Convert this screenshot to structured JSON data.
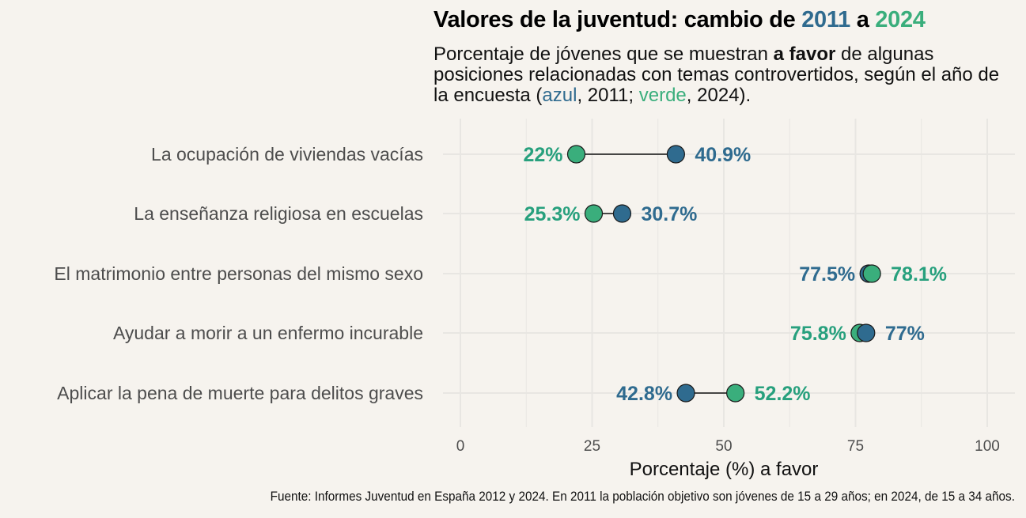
{
  "title": {
    "prefix": "Valores de la juventud: cambio de ",
    "year_a": "2011",
    "connector": " a ",
    "year_b": "2024"
  },
  "subtitle": {
    "part1": "Porcentaje de jóvenes que se muestran ",
    "bold": "a favor",
    "part2": " de algunas posiciones relacionadas con temas controvertidos, según el año de la encuesta (",
    "blue_word": "azul",
    "part3": ", 2011; ",
    "green_word": "verde",
    "part4": ", 2024)."
  },
  "caption": "Fuente: Informes Juventud en España 2012 y 2024. En 2011 la población objetivo son jóvenes de 15 a 29 años; en 2024, de 15 a 34 años.",
  "colors": {
    "y2011": "#2f6b8f",
    "y2024": "#3aae7c",
    "label2024": "#27a07d",
    "background": "#f6f3ee",
    "grid": "#e8e6e2"
  },
  "chart_data": {
    "type": "dumbbell",
    "xlabel": "Porcentaje (%) a favor",
    "xlim": [
      0,
      100
    ],
    "xticks": [
      "0",
      "25",
      "50",
      "75",
      "100"
    ],
    "grid": true,
    "categories": [
      "La ocupación de viviendas vacías",
      "La enseñanza religiosa en escuelas",
      "El matrimonio entre personas del mismo sexo",
      "Ayudar a morir a un enfermo incurable",
      "Aplicar la pena de muerte para delitos graves"
    ],
    "series": [
      {
        "name": "2011",
        "values": [
          40.9,
          30.7,
          77.5,
          77.0,
          42.8
        ],
        "labels": [
          "40.9%",
          "30.7%",
          "77.5%",
          "77%",
          "42.8%"
        ]
      },
      {
        "name": "2024",
        "values": [
          22.0,
          25.3,
          78.1,
          75.8,
          52.2
        ],
        "labels": [
          "22%",
          "25.3%",
          "78.1%",
          "75.8%",
          "52.2%"
        ]
      }
    ]
  }
}
